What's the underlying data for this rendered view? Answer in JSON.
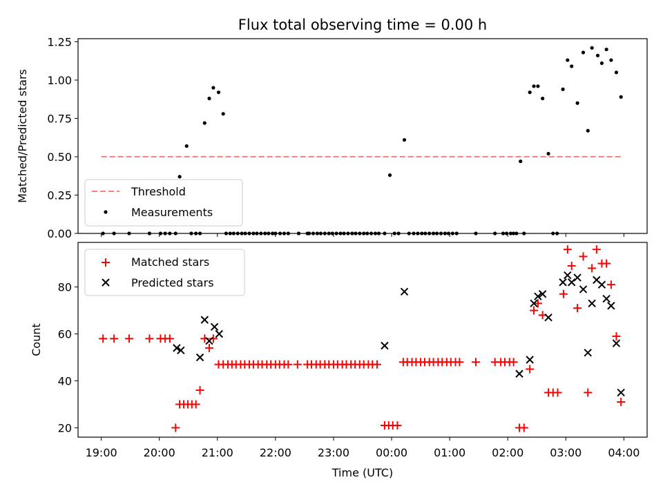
{
  "chart_data": {
    "title": "Flux total observing time = 0.00 h",
    "xlabel": "Time (UTC)",
    "x_tick_labels": [
      "19:00",
      "20:00",
      "21:00",
      "22:00",
      "23:00",
      "00:00",
      "01:00",
      "02:00",
      "03:00",
      "04:00"
    ],
    "x_ticks_hours": [
      19,
      20,
      21,
      22,
      23,
      24,
      25,
      26,
      27,
      28
    ],
    "xlim_hours": [
      18.6,
      28.4
    ],
    "top": {
      "type": "scatter",
      "ylabel": "Matched/Predicted stars",
      "ylim": [
        0,
        1.27
      ],
      "yticks": [
        0,
        0.25,
        0.5,
        0.75,
        1.0,
        1.25
      ],
      "ytick_labels": [
        "0.00",
        "0.25",
        "0.50",
        "0.75",
        "1.00",
        "1.25"
      ],
      "legend": {
        "placement": "lower-left",
        "threshold_label": "Threshold",
        "measurements_label": "Measurements"
      },
      "threshold": {
        "name": "Threshold",
        "value": 0.5,
        "x": [
          19.0,
          27.98
        ],
        "color": "#ff7f7f",
        "style": "dashed"
      },
      "measurements": {
        "name": "Measurements",
        "color": "#000000",
        "x": [
          19.03,
          19.22,
          19.48,
          19.83,
          20.02,
          20.1,
          20.18,
          20.28,
          20.35,
          20.47,
          20.55,
          20.63,
          20.7,
          20.78,
          20.86,
          20.93,
          21.02,
          21.1,
          21.15,
          21.22,
          21.28,
          21.35,
          21.42,
          21.48,
          21.55,
          21.62,
          21.68,
          21.75,
          21.82,
          21.88,
          21.95,
          22.0,
          22.08,
          22.15,
          22.22,
          22.4,
          22.55,
          22.58,
          22.65,
          22.72,
          22.78,
          22.85,
          22.92,
          22.98,
          23.05,
          23.12,
          23.18,
          23.25,
          23.32,
          23.38,
          23.45,
          23.52,
          23.58,
          23.65,
          23.72,
          23.78,
          23.88,
          23.97,
          24.05,
          24.12,
          24.22,
          24.3,
          24.38,
          24.45,
          24.52,
          24.58,
          24.65,
          24.72,
          24.78,
          24.85,
          24.92,
          24.98,
          25.05,
          25.12,
          25.45,
          25.78,
          25.92,
          25.98,
          26.05,
          26.1,
          26.15,
          26.22,
          26.28,
          26.38,
          26.45,
          26.52,
          26.6,
          26.7,
          26.78,
          26.85,
          26.95,
          27.03,
          27.1,
          27.2,
          27.3,
          27.38,
          27.45,
          27.55,
          27.62,
          27.7,
          27.78,
          27.87,
          27.95
        ],
        "y": [
          0,
          0,
          0,
          0,
          0,
          0,
          0,
          0,
          0.37,
          0.57,
          0,
          0,
          0,
          0.72,
          0.88,
          0.95,
          0.92,
          0.78,
          0,
          0,
          0,
          0,
          0,
          0,
          0,
          0,
          0,
          0,
          0,
          0,
          0,
          0,
          0,
          0,
          0,
          0,
          0,
          0,
          0,
          0,
          0,
          0,
          0,
          0,
          0,
          0,
          0,
          0,
          0,
          0,
          0,
          0,
          0,
          0,
          0,
          0,
          0,
          0.38,
          0,
          0,
          0.61,
          0,
          0,
          0,
          0,
          0,
          0,
          0,
          0,
          0,
          0,
          0,
          0,
          0,
          0,
          0,
          0,
          0,
          0,
          0,
          0,
          0.47,
          0,
          0.92,
          0.96,
          0.96,
          0.88,
          0.52,
          0,
          0,
          0.94,
          1.13,
          1.09,
          0.85,
          1.18,
          0.67,
          1.21,
          1.16,
          1.11,
          1.2,
          1.13,
          1.05,
          0.89
        ]
      }
    },
    "bottom": {
      "type": "scatter",
      "ylabel": "Count",
      "ylim": [
        16,
        99
      ],
      "yticks": [
        20,
        40,
        60,
        80
      ],
      "ytick_labels": [
        "20",
        "40",
        "60",
        "80"
      ],
      "legend": {
        "placement": "upper-left",
        "matched_label": "Matched stars",
        "predicted_label": "Predicted stars"
      },
      "matched": {
        "name": "Matched stars",
        "color": "#ff0000",
        "marker": "plus",
        "x": [
          19.03,
          19.22,
          19.48,
          19.83,
          20.02,
          20.1,
          20.18,
          20.28,
          20.35,
          20.42,
          20.49,
          20.56,
          20.63,
          20.7,
          20.78,
          20.86,
          20.93,
          21.02,
          21.1,
          21.18,
          21.25,
          21.32,
          21.4,
          21.47,
          21.55,
          21.62,
          21.7,
          21.77,
          21.85,
          21.92,
          22.0,
          22.07,
          22.15,
          22.22,
          22.38,
          22.55,
          22.62,
          22.7,
          22.77,
          22.85,
          22.92,
          23.0,
          23.07,
          23.15,
          23.22,
          23.3,
          23.37,
          23.45,
          23.52,
          23.6,
          23.67,
          23.75,
          23.88,
          23.95,
          24.02,
          24.1,
          24.2,
          24.27,
          24.35,
          24.42,
          24.5,
          24.57,
          24.65,
          24.72,
          24.8,
          24.87,
          24.95,
          25.02,
          25.1,
          25.17,
          25.45,
          25.78,
          25.88,
          25.95,
          26.03,
          26.1,
          26.2,
          26.28,
          26.38,
          26.45,
          26.52,
          26.6,
          26.7,
          26.78,
          26.86,
          26.96,
          27.03,
          27.1,
          27.2,
          27.3,
          27.38,
          27.45,
          27.53,
          27.62,
          27.7,
          27.78,
          27.87,
          27.95
        ],
        "y": [
          58,
          58,
          58,
          58,
          58,
          58,
          58,
          20,
          30,
          30,
          30,
          30,
          30,
          36,
          58,
          54,
          58,
          47,
          47,
          47,
          47,
          47,
          47,
          47,
          47,
          47,
          47,
          47,
          47,
          47,
          47,
          47,
          47,
          47,
          47,
          47,
          47,
          47,
          47,
          47,
          47,
          47,
          47,
          47,
          47,
          47,
          47,
          47,
          47,
          47,
          47,
          47,
          21,
          21,
          21,
          21,
          48,
          48,
          48,
          48,
          48,
          48,
          48,
          48,
          48,
          48,
          48,
          48,
          48,
          48,
          48,
          48,
          48,
          48,
          48,
          48,
          20,
          20,
          45,
          70,
          73,
          68,
          35,
          35,
          35,
          77,
          96,
          89,
          71,
          93,
          35,
          88,
          96,
          90,
          90,
          81,
          59,
          31
        ]
      },
      "predicted": {
        "name": "Predicted stars",
        "color": "#000000",
        "marker": "x",
        "x": [
          20.3,
          20.37,
          20.7,
          20.78,
          20.86,
          20.95,
          21.03,
          23.88,
          24.22,
          26.2,
          26.38,
          26.45,
          26.52,
          26.6,
          26.7,
          26.95,
          27.03,
          27.1,
          27.2,
          27.3,
          27.38,
          27.45,
          27.53,
          27.62,
          27.7,
          27.78,
          27.87,
          27.95
        ],
        "y": [
          54,
          53,
          50,
          66,
          57,
          63,
          60,
          55,
          78,
          43,
          49,
          73,
          76,
          77,
          67,
          82,
          85,
          82,
          84,
          79,
          52,
          73,
          83,
          81,
          75,
          72,
          56,
          35
        ]
      }
    }
  }
}
